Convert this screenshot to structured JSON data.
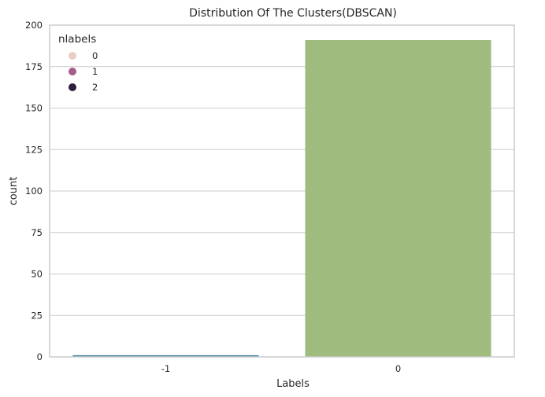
{
  "chart_data": {
    "type": "bar",
    "title": "Distribution Of The Clusters(DBSCAN)",
    "xlabel": "Labels",
    "ylabel": "count",
    "categories": [
      "-1",
      "0"
    ],
    "values": [
      1,
      191
    ],
    "bar_colors": [
      "#3a7ca5",
      "#9fbb7d"
    ],
    "ylim": [
      0,
      200
    ],
    "yticks": [
      0,
      25,
      50,
      75,
      100,
      125,
      150,
      175,
      200
    ],
    "grid": true,
    "legend": {
      "title": "nlabels",
      "placement": "top-left",
      "entries": [
        {
          "label": "0",
          "color": "#ebcdc4"
        },
        {
          "label": "1",
          "color": "#a65c8c"
        },
        {
          "label": "2",
          "color": "#2d1e3e"
        }
      ]
    }
  }
}
